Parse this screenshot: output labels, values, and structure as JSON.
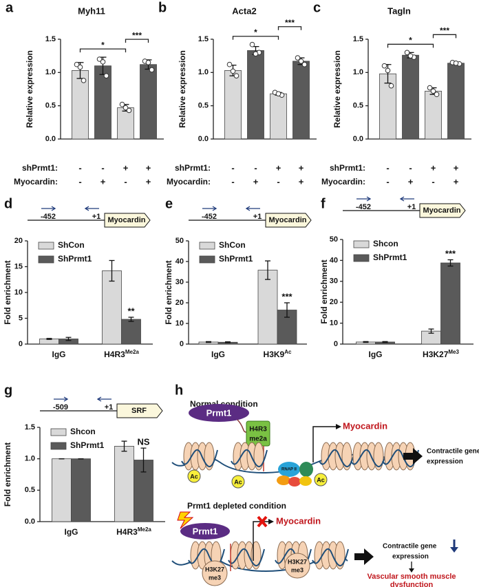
{
  "chart_data": [
    {
      "type": "bar",
      "panel": "a",
      "title": "Myh11",
      "y_label": "Relative expression",
      "ylim": [
        0,
        1.5
      ],
      "yticks": [
        {
          "value": 0,
          "label": "0.0"
        },
        {
          "value": 0.5,
          "label": "0.5"
        },
        {
          "value": 1,
          "label": "1.0"
        },
        {
          "value": 1.5,
          "label": "1.5"
        }
      ],
      "values": [
        1.03,
        1.1,
        0.47,
        1.12
      ],
      "errors": [
        0.12,
        0.13,
        0.05,
        0.07
      ],
      "points": [
        [
          1.12,
          0.88,
          1.08
        ],
        [
          1.2,
          0.95,
          1.16
        ],
        [
          0.52,
          0.43,
          0.47
        ],
        [
          1.17,
          1.04,
          1.15
        ]
      ],
      "colors": [
        "#d9d9d9",
        "#5a5a5a",
        "#d9d9d9",
        "#5a5a5a"
      ],
      "conditions": [
        {
          "name": "shPrmt1:",
          "values": [
            "-",
            "-",
            "+",
            "+"
          ]
        },
        {
          "name": "Myocardin:",
          "values": [
            "-",
            "+",
            "-",
            "+"
          ]
        }
      ],
      "significance": [
        {
          "bars": [
            0,
            2
          ],
          "label": "*"
        },
        {
          "bars": [
            2,
            3
          ],
          "label": "***"
        }
      ]
    },
    {
      "type": "bar",
      "panel": "b",
      "title": "Acta2",
      "y_label": "Relative expression",
      "ylim": [
        0,
        1.5
      ],
      "yticks": [
        {
          "value": 0,
          "label": "0.0"
        },
        {
          "value": 0.5,
          "label": "0.5"
        },
        {
          "value": 1,
          "label": "1.0"
        },
        {
          "value": 1.5,
          "label": "1.5"
        }
      ],
      "values": [
        1.03,
        1.33,
        0.68,
        1.17
      ],
      "errors": [
        0.08,
        0.06,
        0.02,
        0.05
      ],
      "points": [
        [
          1.12,
          0.95,
          1.02
        ],
        [
          1.42,
          1.3,
          1.28
        ],
        [
          0.7,
          0.66,
          0.68
        ],
        [
          1.22,
          1.12,
          1.17
        ]
      ],
      "colors": [
        "#d9d9d9",
        "#5a5a5a",
        "#d9d9d9",
        "#5a5a5a"
      ],
      "conditions": [
        {
          "name": "shPrmt1:",
          "values": [
            "-",
            "-",
            "+",
            "+"
          ]
        },
        {
          "name": "Myocardin:",
          "values": [
            "-",
            "+",
            "-",
            "+"
          ]
        }
      ],
      "significance": [
        {
          "bars": [
            0,
            2
          ],
          "label": "*"
        },
        {
          "bars": [
            2,
            3
          ],
          "label": "***"
        }
      ]
    },
    {
      "type": "bar",
      "panel": "c",
      "title": "Tagln",
      "y_label": "Relative expression",
      "ylim": [
        0,
        1.5
      ],
      "yticks": [
        {
          "value": 0,
          "label": "0.0"
        },
        {
          "value": 0.5,
          "label": "0.5"
        },
        {
          "value": 1,
          "label": "1.0"
        },
        {
          "value": 1.5,
          "label": "1.5"
        }
      ],
      "values": [
        0.98,
        1.26,
        0.72,
        1.14
      ],
      "errors": [
        0.14,
        0.04,
        0.05,
        0.01
      ],
      "points": [
        [
          1.1,
          0.8,
          1.03
        ],
        [
          1.3,
          1.23,
          1.25
        ],
        [
          0.77,
          0.67,
          0.72
        ],
        [
          1.15,
          1.13,
          1.14
        ]
      ],
      "colors": [
        "#d9d9d9",
        "#5a5a5a",
        "#d9d9d9",
        "#5a5a5a"
      ],
      "conditions": [
        {
          "name": "shPrmt1:",
          "values": [
            "-",
            "-",
            "+",
            "+"
          ]
        },
        {
          "name": "Myocardin:",
          "values": [
            "-",
            "+",
            "-",
            "+"
          ]
        }
      ],
      "significance": [
        {
          "bars": [
            0,
            2
          ],
          "label": "*"
        },
        {
          "bars": [
            2,
            3
          ],
          "label": "***"
        }
      ]
    },
    {
      "type": "grouped_bar",
      "panel": "d",
      "y_label": "Fold enrichment",
      "promoter": {
        "forward": "-452",
        "reverse": "+1",
        "gene": "Myocardin"
      },
      "ylim": [
        0,
        20
      ],
      "yticks": [
        0,
        5,
        10,
        15,
        20
      ],
      "categories": [
        "IgG",
        "H4R3"
      ],
      "category_superscript": {
        "index": 1,
        "text": "Me2a"
      },
      "series": [
        {
          "name": "ShCon",
          "color": "#d9d9d9",
          "values": [
            1.0,
            14.2
          ],
          "errors": [
            0.1,
            2.0
          ]
        },
        {
          "name": "ShPrmt1",
          "color": "#5a5a5a",
          "values": [
            1.0,
            4.8
          ],
          "errors": [
            0.3,
            0.4
          ]
        }
      ],
      "annotations": [
        {
          "series": 1,
          "category": 1,
          "label": "**"
        }
      ]
    },
    {
      "type": "grouped_bar",
      "panel": "e",
      "y_label": "Fold enrichment",
      "promoter": {
        "forward": "-452",
        "reverse": "+1",
        "gene": "Myocardin"
      },
      "ylim": [
        0,
        50
      ],
      "yticks": [
        0,
        10,
        20,
        30,
        40,
        50
      ],
      "categories": [
        "IgG",
        "H3K9"
      ],
      "category_superscript": {
        "index": 1,
        "text": "Ac"
      },
      "series": [
        {
          "name": "ShCon",
          "color": "#d9d9d9",
          "values": [
            1.0,
            35.8
          ],
          "errors": [
            0.2,
            4.5
          ]
        },
        {
          "name": "ShPrmt1",
          "color": "#5a5a5a",
          "values": [
            0.9,
            16.5
          ],
          "errors": [
            0.2,
            3.5
          ]
        }
      ],
      "annotations": [
        {
          "series": 1,
          "category": 1,
          "label": "***"
        }
      ]
    },
    {
      "type": "grouped_bar",
      "panel": "f",
      "y_label": "Fold enrichment",
      "promoter": {
        "forward": "-452",
        "reverse": "+1",
        "gene": "Myocardin"
      },
      "ylim": [
        0,
        50
      ],
      "yticks": [
        0,
        10,
        20,
        30,
        40,
        50
      ],
      "categories": [
        "IgG",
        "H3K27"
      ],
      "category_superscript": {
        "index": 1,
        "text": "Me3"
      },
      "series": [
        {
          "name": "Shcon",
          "color": "#d9d9d9",
          "values": [
            1.0,
            6.2
          ],
          "errors": [
            0.2,
            1.0
          ]
        },
        {
          "name": "ShPrmt1",
          "color": "#5a5a5a",
          "values": [
            1.0,
            38.8
          ],
          "errors": [
            0.2,
            1.5
          ]
        }
      ],
      "annotations": [
        {
          "series": 1,
          "category": 1,
          "label": "***"
        }
      ]
    },
    {
      "type": "grouped_bar",
      "panel": "g",
      "y_label": "Fold enrichment",
      "promoter": {
        "forward": "-509",
        "reverse": "+1",
        "gene": "SRF"
      },
      "ylim": [
        0,
        1.5
      ],
      "yticks": [
        {
          "value": 0,
          "label": "0.0"
        },
        {
          "value": 0.5,
          "label": "0.5"
        },
        {
          "value": 1,
          "label": "1.0"
        },
        {
          "value": 1.5,
          "label": "1.5"
        }
      ],
      "categories": [
        "IgG",
        "H4R3"
      ],
      "category_superscript": {
        "index": 1,
        "text": "Me2a"
      },
      "series": [
        {
          "name": "Shcon",
          "color": "#d9d9d9",
          "values": [
            1.0,
            1.2
          ],
          "errors": [
            0,
            0.08
          ]
        },
        {
          "name": "ShPrmt1",
          "color": "#5a5a5a",
          "values": [
            1.0,
            0.98
          ],
          "errors": [
            0,
            0.19
          ]
        }
      ],
      "annotations": [
        {
          "series": 1,
          "category": 1,
          "label": "NS"
        }
      ]
    }
  ],
  "diagram": {
    "panel": "h",
    "normal": {
      "title": "Normal condition",
      "enzyme": "Prmt1",
      "mark": [
        "H4R3",
        "me2a"
      ],
      "acetyl": [
        "Ac",
        "Ac",
        "Ac"
      ],
      "complex": "RNAP II",
      "gene": "Myocardin",
      "outcome": [
        "Contractile gene",
        "expression"
      ]
    },
    "depleted": {
      "title": "Prmt1 depleted condition",
      "enzyme": "Prmt1",
      "gene": "Myocardin",
      "marks": [
        [
          "H3K27",
          "me3"
        ],
        [
          "H3K27",
          "me3"
        ]
      ],
      "outcome": [
        "Contractile gene",
        "expression"
      ],
      "result": [
        "Vascular smooth muscle",
        "dysfunction"
      ]
    }
  }
}
